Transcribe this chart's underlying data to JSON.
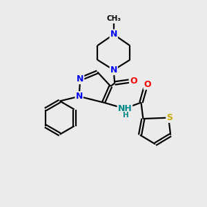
{
  "bg_color": "#ebebeb",
  "N_color": "#0000ff",
  "O_color": "#ff0000",
  "S_color": "#ccaa00",
  "C_color": "#000000",
  "H_color": "#008888",
  "bond_color": "#000000",
  "figsize": [
    3.0,
    3.0
  ],
  "dpi": 100,
  "xlim": [
    0,
    10
  ],
  "ylim": [
    0,
    10
  ]
}
